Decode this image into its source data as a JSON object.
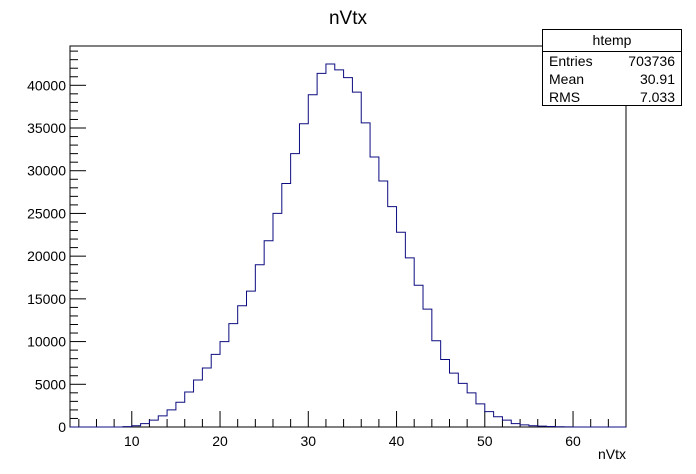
{
  "chart_data": {
    "type": "histogram",
    "title": "nVtx",
    "xlabel": "nVtx",
    "ylabel": "",
    "xlim": [
      3,
      66
    ],
    "ylim": [
      0,
      44600
    ],
    "bin_width": 1,
    "bin_low_edges": [
      3,
      4,
      5,
      6,
      7,
      8,
      9,
      10,
      11,
      12,
      13,
      14,
      15,
      16,
      17,
      18,
      19,
      20,
      21,
      22,
      23,
      24,
      25,
      26,
      27,
      28,
      29,
      30,
      31,
      32,
      33,
      34,
      35,
      36,
      37,
      38,
      39,
      40,
      41,
      42,
      43,
      44,
      45,
      46,
      47,
      48,
      49,
      50,
      51,
      52,
      53,
      54,
      55,
      56,
      57,
      58,
      59,
      60,
      61,
      62,
      63,
      64,
      65
    ],
    "values": [
      0,
      0,
      0,
      0,
      0,
      0,
      40,
      150,
      400,
      800,
      1300,
      2000,
      2900,
      4100,
      5500,
      6900,
      8500,
      10000,
      12100,
      14200,
      15900,
      19000,
      21800,
      25000,
      28500,
      32000,
      35500,
      38900,
      41400,
      42500,
      41800,
      40900,
      39200,
      35600,
      31600,
      28800,
      25800,
      22800,
      19800,
      16600,
      13800,
      10100,
      7900,
      6300,
      5100,
      4000,
      2700,
      1800,
      1200,
      800,
      400,
      250,
      150,
      100,
      60,
      30,
      10,
      0,
      0,
      0,
      0,
      0,
      0
    ],
    "yticks": [
      0,
      5000,
      10000,
      15000,
      20000,
      25000,
      30000,
      35000,
      40000
    ],
    "xticks": [
      10,
      20,
      30,
      40,
      50,
      60
    ],
    "line_color": "#0c0c80"
  },
  "stats_box": {
    "title": "htemp",
    "rows": [
      {
        "label": "Entries",
        "value": "703736"
      },
      {
        "label": "Mean",
        "value": "30.91"
      },
      {
        "label": "RMS",
        "value": "7.033"
      }
    ]
  }
}
